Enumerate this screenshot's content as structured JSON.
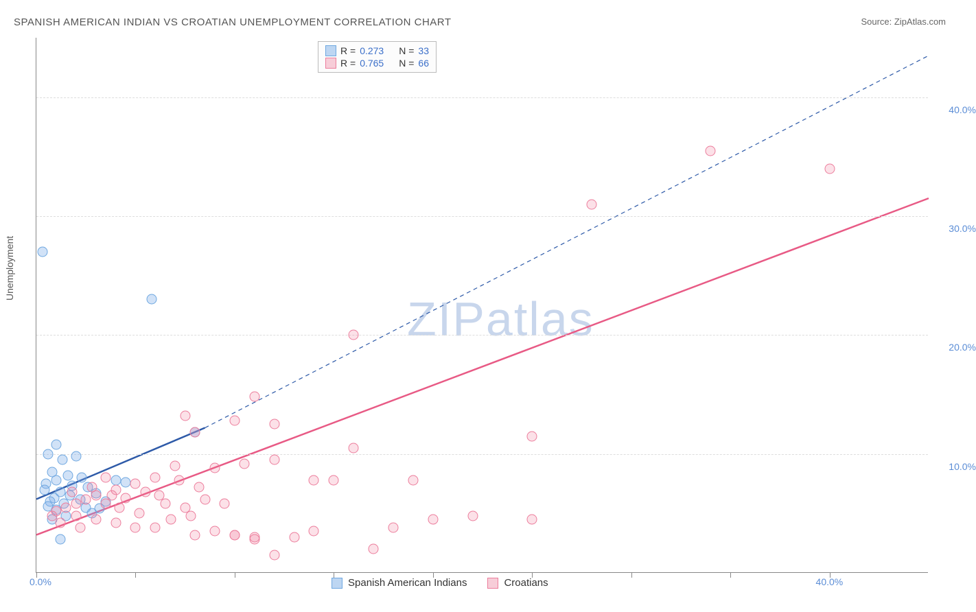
{
  "title": "SPANISH AMERICAN INDIAN VS CROATIAN UNEMPLOYMENT CORRELATION CHART",
  "source": "Source: ZipAtlas.com",
  "ylabel": "Unemployment",
  "watermark_prefix": "ZIP",
  "watermark_suffix": "atlas",
  "chart": {
    "type": "scatter",
    "xlim": [
      0,
      45
    ],
    "ylim": [
      0,
      45
    ],
    "grid_y": [
      10,
      20,
      30,
      40
    ],
    "ytick_labels": [
      "10.0%",
      "20.0%",
      "30.0%",
      "40.0%"
    ],
    "xtick_positions": [
      0,
      5,
      10,
      15,
      20,
      25,
      30,
      35,
      40
    ],
    "xtick_first_label": "0.0%",
    "xtick_last_label": "40.0%",
    "background_color": "#ffffff",
    "grid_color": "#dddddd",
    "axis_color": "#888888"
  },
  "series": [
    {
      "name": "Spanish American Indians",
      "color_fill": "#bdd6f2",
      "color_stroke": "#6ea7e0",
      "trend_color": "#2e5aa8",
      "trend_solid": {
        "x1": 0,
        "y1": 6.2,
        "x2": 8.5,
        "y2": 12.2
      },
      "trend_dashed": {
        "x1": 8.5,
        "y1": 12.2,
        "x2": 45,
        "y2": 43.5
      },
      "R": "0.273",
      "N": "33",
      "points": [
        [
          0.3,
          27
        ],
        [
          5.8,
          23
        ],
        [
          1.0,
          10.8
        ],
        [
          0.6,
          10.0
        ],
        [
          2.0,
          9.8
        ],
        [
          1.3,
          9.5
        ],
        [
          0.8,
          8.5
        ],
        [
          1.6,
          8.2
        ],
        [
          2.3,
          8.0
        ],
        [
          1.0,
          7.8
        ],
        [
          0.5,
          7.5
        ],
        [
          1.8,
          7.3
        ],
        [
          2.6,
          7.2
        ],
        [
          0.4,
          7.0
        ],
        [
          1.2,
          6.8
        ],
        [
          3.0,
          6.7
        ],
        [
          1.7,
          6.5
        ],
        [
          0.9,
          6.3
        ],
        [
          2.2,
          6.2
        ],
        [
          0.7,
          6.0
        ],
        [
          3.5,
          6.0
        ],
        [
          1.4,
          5.8
        ],
        [
          0.6,
          5.6
        ],
        [
          2.5,
          5.5
        ],
        [
          1.0,
          5.3
        ],
        [
          4.0,
          7.8
        ],
        [
          4.5,
          7.6
        ],
        [
          3.2,
          5.4
        ],
        [
          1.5,
          4.8
        ],
        [
          0.8,
          4.5
        ],
        [
          2.8,
          5.0
        ],
        [
          1.2,
          2.8
        ],
        [
          8.0,
          11.8
        ]
      ]
    },
    {
      "name": "Croatians",
      "color_fill": "#f7cdd8",
      "color_stroke": "#ec7d9c",
      "trend_color": "#e85a85",
      "trend_solid": {
        "x1": 0,
        "y1": 3.2,
        "x2": 45,
        "y2": 31.5
      },
      "R": "0.765",
      "N": "66",
      "points": [
        [
          28,
          31
        ],
        [
          34,
          35.5
        ],
        [
          40,
          34
        ],
        [
          16,
          20
        ],
        [
          25,
          11.5
        ],
        [
          10,
          12.8
        ],
        [
          12,
          12.5
        ],
        [
          7.5,
          13.2
        ],
        [
          11,
          14.8
        ],
        [
          8,
          11.8
        ],
        [
          10.5,
          9.2
        ],
        [
          12,
          9.5
        ],
        [
          14,
          7.8
        ],
        [
          15,
          7.8
        ],
        [
          16,
          10.5
        ],
        [
          9,
          8.8
        ],
        [
          7,
          9.0
        ],
        [
          6,
          8.0
        ],
        [
          5,
          7.5
        ],
        [
          4,
          7.0
        ],
        [
          3,
          6.5
        ],
        [
          2.5,
          6.2
        ],
        [
          2,
          5.8
        ],
        [
          1.5,
          5.5
        ],
        [
          1,
          5.2
        ],
        [
          3.5,
          5.8
        ],
        [
          4.5,
          6.3
        ],
        [
          5.5,
          6.8
        ],
        [
          6.5,
          5.8
        ],
        [
          7.5,
          5.5
        ],
        [
          8.5,
          6.2
        ],
        [
          9.5,
          5.8
        ],
        [
          10,
          3.2
        ],
        [
          11,
          2.8
        ],
        [
          12,
          1.5
        ],
        [
          13,
          3.0
        ],
        [
          17,
          2.0
        ],
        [
          8,
          3.2
        ],
        [
          9,
          3.5
        ],
        [
          6,
          3.8
        ],
        [
          19,
          7.8
        ],
        [
          20,
          4.5
        ],
        [
          22,
          4.8
        ],
        [
          25,
          4.5
        ],
        [
          2,
          4.8
        ],
        [
          3,
          4.5
        ],
        [
          4,
          4.2
        ],
        [
          5,
          3.8
        ],
        [
          1.8,
          6.8
        ],
        [
          2.8,
          7.2
        ],
        [
          3.8,
          6.5
        ],
        [
          4.2,
          5.5
        ],
        [
          5.2,
          5.0
        ],
        [
          6.2,
          6.5
        ],
        [
          7.2,
          7.8
        ],
        [
          8.2,
          7.2
        ],
        [
          0.8,
          4.8
        ],
        [
          1.2,
          4.2
        ],
        [
          2.2,
          3.8
        ],
        [
          10,
          3.2
        ],
        [
          11,
          3.0
        ],
        [
          14,
          3.5
        ],
        [
          18,
          3.8
        ],
        [
          6.8,
          4.5
        ],
        [
          7.8,
          4.8
        ],
        [
          3.5,
          8.0
        ]
      ]
    }
  ],
  "legend": {
    "r_label": "R =",
    "n_label": "N ="
  },
  "bottom_legend": [
    {
      "label": "Spanish American Indians",
      "swatch": "blue"
    },
    {
      "label": "Croatians",
      "swatch": "pink"
    }
  ]
}
